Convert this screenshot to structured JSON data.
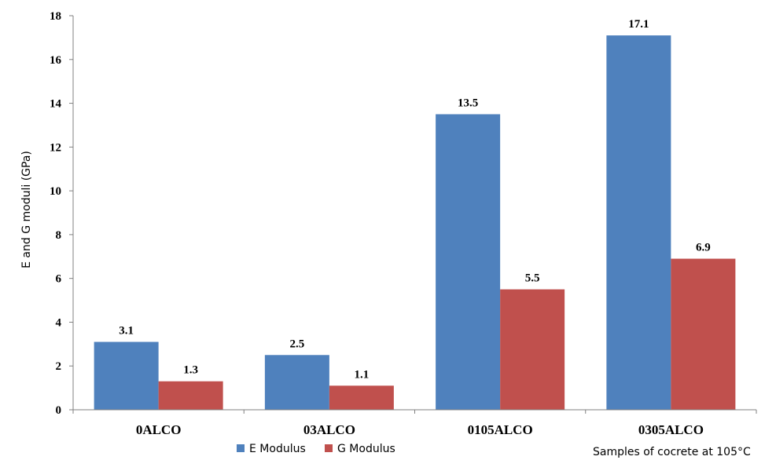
{
  "chart_data": {
    "type": "bar",
    "categories": [
      "0ALCO",
      "03ALCO",
      "0105ALCO",
      "0305ALCO"
    ],
    "series": [
      {
        "name": "E Modulus",
        "values": [
          3.1,
          2.5,
          13.5,
          17.1
        ],
        "labels": [
          "3.1",
          "2.5",
          "13.5",
          "17.1"
        ],
        "color": "#4F81BD"
      },
      {
        "name": "G Modulus",
        "values": [
          1.3,
          1.1,
          5.5,
          6.9
        ],
        "labels": [
          "1.3",
          "1.1",
          "5.5",
          "6.9"
        ],
        "color": "#C0504D"
      }
    ],
    "title": "",
    "xlabel": "Samples  of cocrete at 105°C",
    "ylabel": "E and G moduli (GPa)",
    "ylim": [
      0,
      18
    ],
    "yticks": [
      0,
      2,
      4,
      6,
      8,
      10,
      12,
      14,
      16,
      18
    ],
    "grid": false,
    "legend_position": "bottom"
  }
}
